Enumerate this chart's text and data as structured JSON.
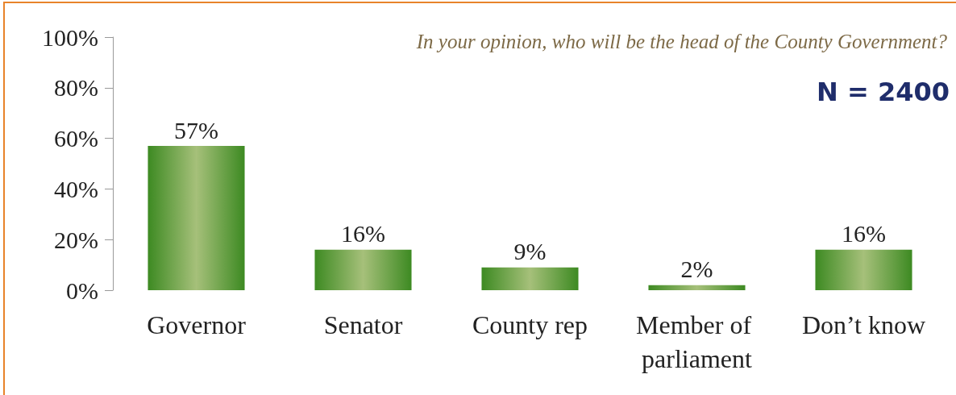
{
  "chart_data": {
    "type": "bar",
    "title": "In your opinion, who will be the head of the County Government?",
    "annotations": [
      "N = 2400"
    ],
    "categories": [
      "Governor",
      "Senator",
      "County rep",
      "Member of parliament",
      "Don’t know"
    ],
    "values": [
      57,
      16,
      9,
      2,
      16
    ],
    "value_labels": [
      "57%",
      "16%",
      "9%",
      "2%",
      "16%"
    ],
    "color": "#3d8a22",
    "ylim": [
      0,
      100
    ],
    "yticks": [
      {
        "value": 0,
        "label": "0%"
      },
      {
        "value": 20,
        "label": "20%"
      },
      {
        "value": 40,
        "label": "40%"
      },
      {
        "value": 60,
        "label": "60%"
      },
      {
        "value": 80,
        "label": "80%"
      },
      {
        "value": 100,
        "label": "100%"
      }
    ],
    "grid": false
  }
}
